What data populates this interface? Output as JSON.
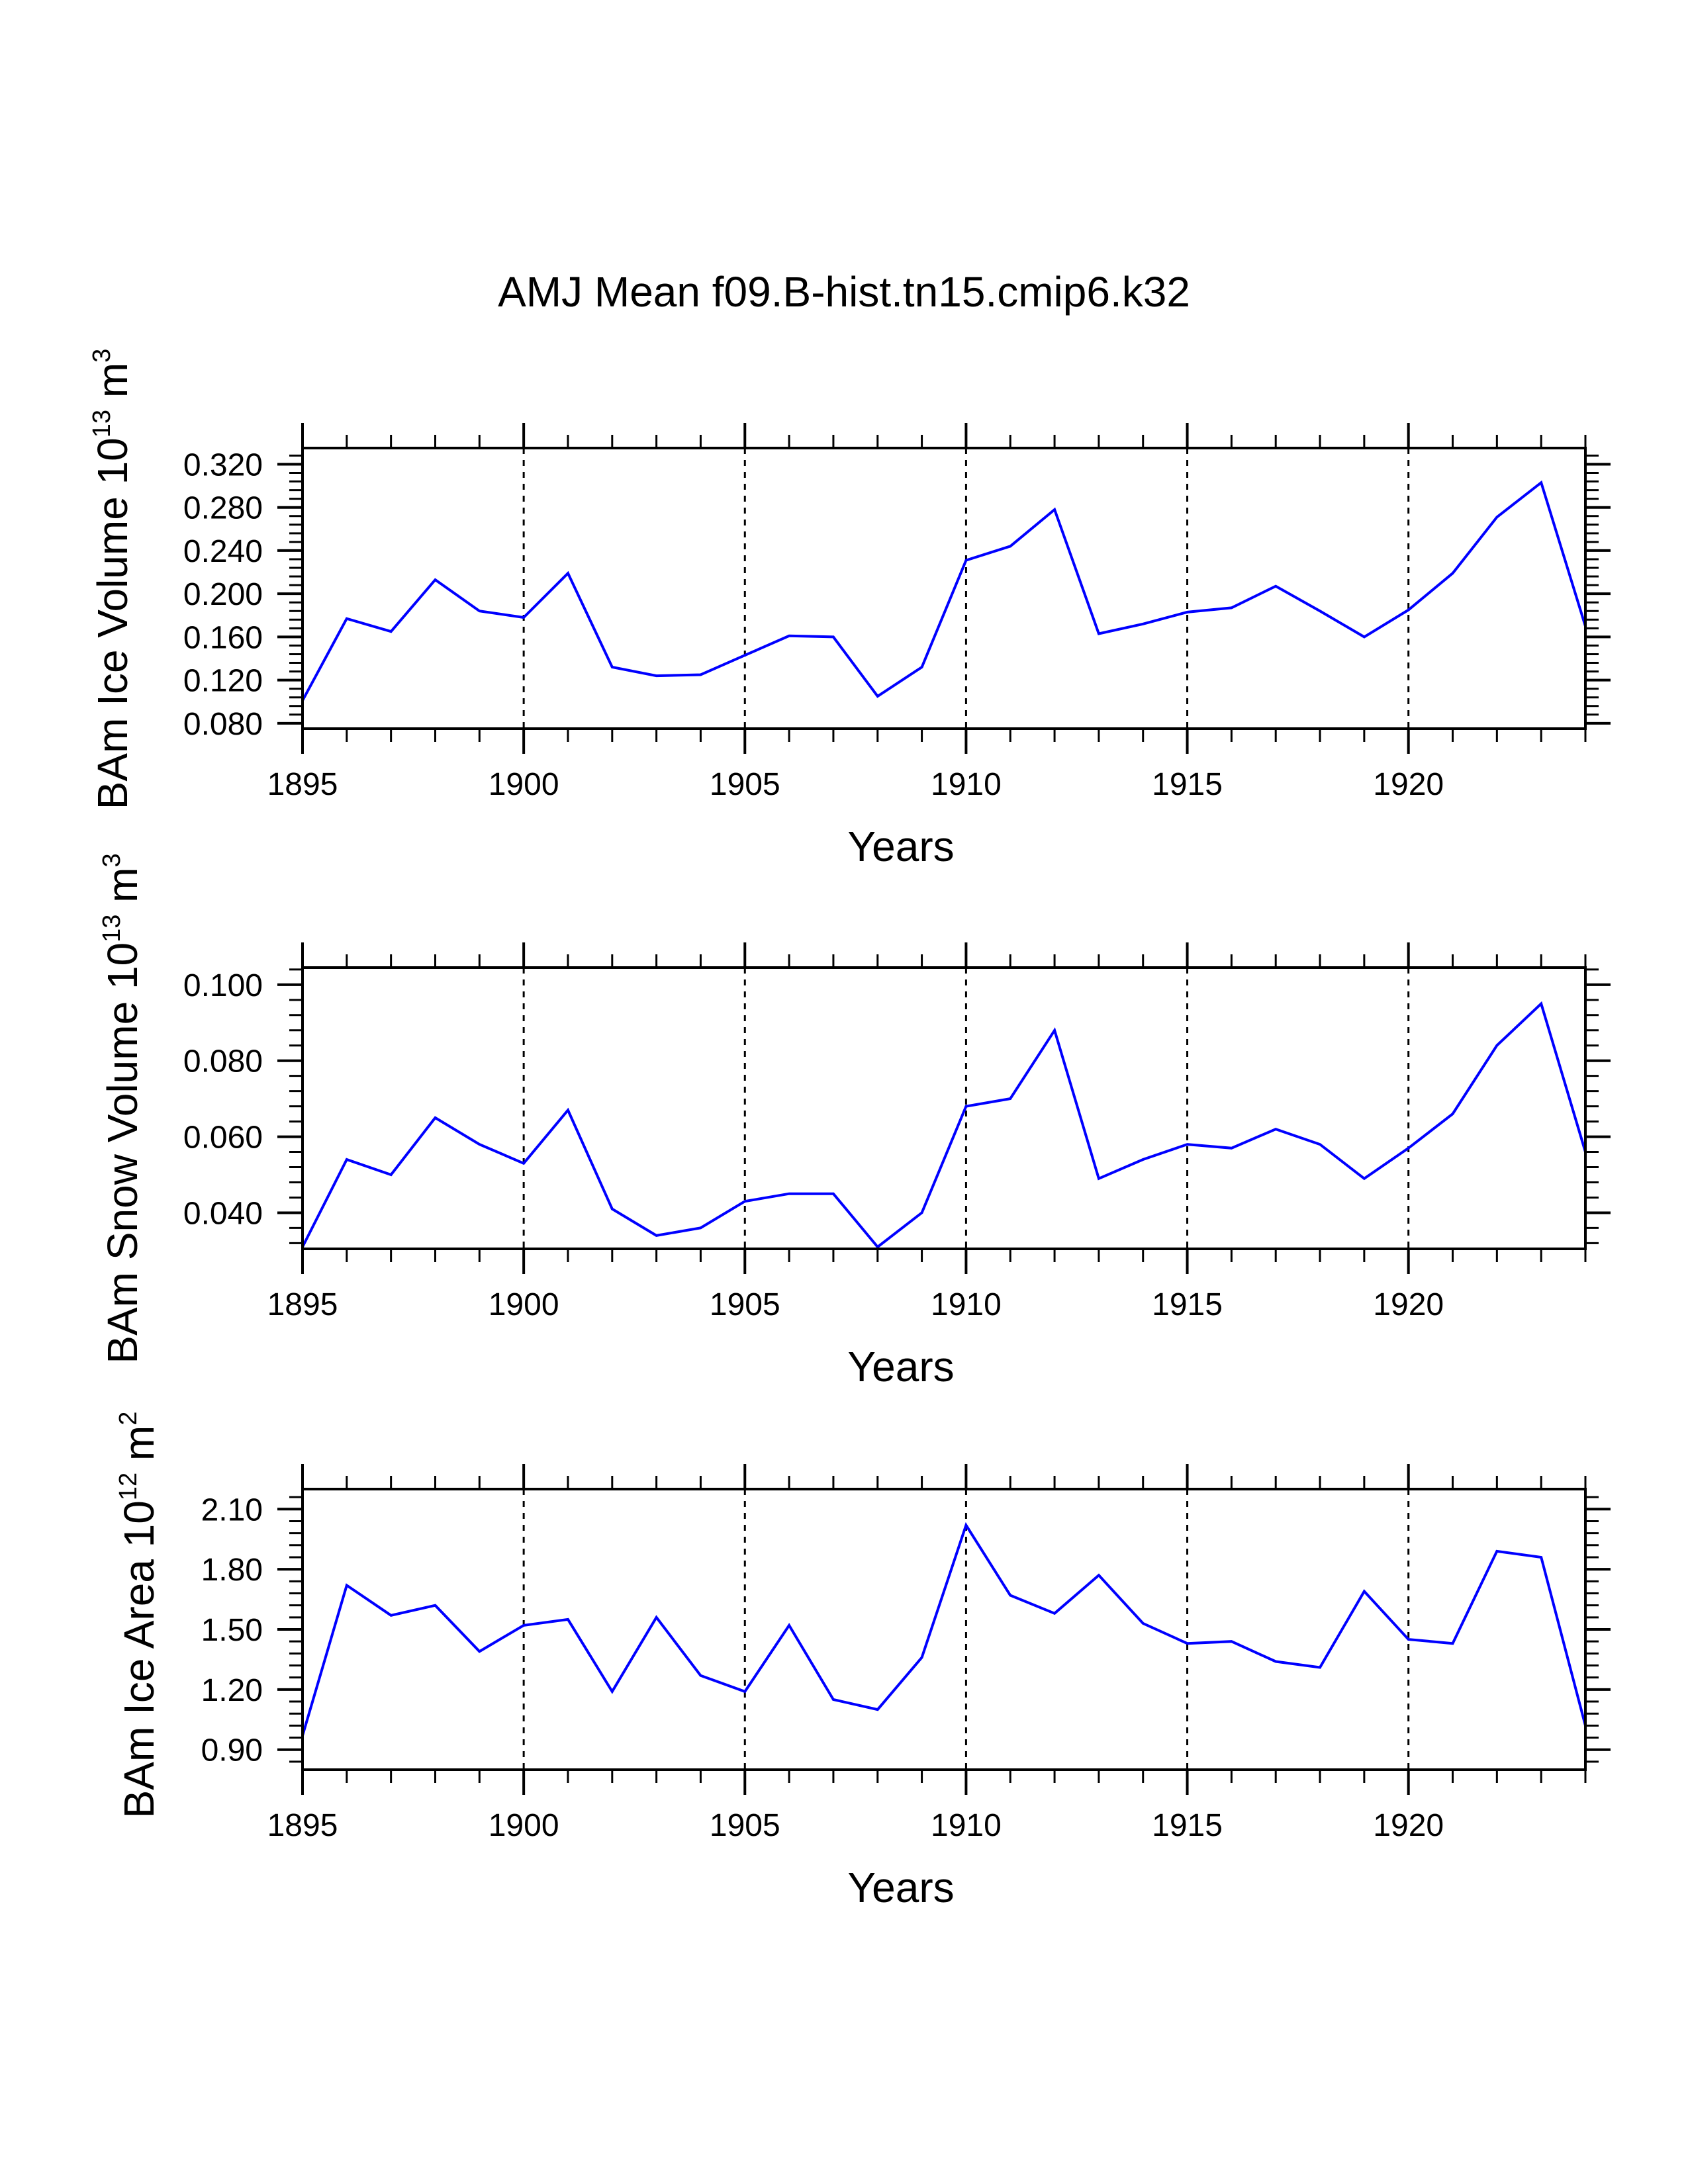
{
  "figure_title": "AMJ Mean f09.B-hist.tn15.cmip6.k32",
  "colors": {
    "series": "#0000ff",
    "axes": "#000000",
    "background": "#ffffff"
  },
  "chart_data": [
    {
      "type": "line",
      "name": "ice-volume",
      "ylabel": {
        "text": "BAm Ice Volume 10",
        "exp": "13",
        "unit": " m",
        "unit_exp": "3"
      },
      "xlabel": "Years",
      "xlim": [
        1895,
        1924
      ],
      "ylim": [
        0.075,
        0.335
      ],
      "x_ticks": [
        1895,
        1900,
        1905,
        1910,
        1915,
        1920
      ],
      "x_tick_labels": [
        "1895",
        "1900",
        "1905",
        "1910",
        "1915",
        "1920"
      ],
      "y_ticks": [
        0.08,
        0.12,
        0.16,
        0.2,
        0.24,
        0.28,
        0.32
      ],
      "y_tick_labels": [
        "0.080",
        "0.120",
        "0.160",
        "0.200",
        "0.240",
        "0.280",
        "0.320"
      ],
      "grid_x": [
        1900,
        1905,
        1910,
        1915,
        1920
      ],
      "x": [
        1895,
        1896,
        1897,
        1898,
        1899,
        1900,
        1901,
        1902,
        1903,
        1904,
        1905,
        1906,
        1907,
        1908,
        1909,
        1910,
        1911,
        1912,
        1913,
        1914,
        1915,
        1916,
        1917,
        1918,
        1919,
        1920,
        1921,
        1922,
        1923,
        1924
      ],
      "values": [
        0.101,
        0.177,
        0.165,
        0.213,
        0.184,
        0.178,
        0.219,
        0.132,
        0.124,
        0.125,
        0.143,
        0.161,
        0.16,
        0.105,
        0.132,
        0.231,
        0.244,
        0.278,
        0.163,
        0.172,
        0.183,
        0.187,
        0.207,
        0.184,
        0.16,
        0.185,
        0.219,
        0.271,
        0.303,
        0.17
      ]
    },
    {
      "type": "line",
      "name": "snow-volume",
      "ylabel": {
        "text": "BAm Snow Volume 10",
        "exp": "13",
        "unit": " m",
        "unit_exp": "3"
      },
      "xlabel": "Years",
      "xlim": [
        1895,
        1924
      ],
      "ylim": [
        0.0305,
        0.1045
      ],
      "x_ticks": [
        1895,
        1900,
        1905,
        1910,
        1915,
        1920
      ],
      "x_tick_labels": [
        "1895",
        "1900",
        "1905",
        "1910",
        "1915",
        "1920"
      ],
      "y_ticks": [
        0.04,
        0.06,
        0.08,
        0.1
      ],
      "y_tick_labels": [
        "0.040",
        "0.060",
        "0.080",
        "0.100"
      ],
      "grid_x": [
        1900,
        1905,
        1910,
        1915,
        1920
      ],
      "x": [
        1895,
        1896,
        1897,
        1898,
        1899,
        1900,
        1901,
        1902,
        1903,
        1904,
        1905,
        1906,
        1907,
        1908,
        1909,
        1910,
        1911,
        1912,
        1913,
        1914,
        1915,
        1916,
        1917,
        1918,
        1919,
        1920,
        1921,
        1922,
        1923,
        1924
      ],
      "values": [
        0.031,
        0.054,
        0.05,
        0.065,
        0.058,
        0.053,
        0.067,
        0.041,
        0.034,
        0.036,
        0.043,
        0.045,
        0.045,
        0.031,
        0.04,
        0.068,
        0.07,
        0.088,
        0.049,
        0.054,
        0.058,
        0.057,
        0.062,
        0.058,
        0.049,
        0.057,
        0.066,
        0.084,
        0.095,
        0.056
      ]
    },
    {
      "type": "line",
      "name": "ice-area",
      "ylabel": {
        "text": "BAm Ice Area 10",
        "exp": "12",
        "unit": " m",
        "unit_exp": "2"
      },
      "xlabel": "Years",
      "xlim": [
        1895,
        1924
      ],
      "ylim": [
        0.8,
        2.2
      ],
      "x_ticks": [
        1895,
        1900,
        1905,
        1910,
        1915,
        1920
      ],
      "x_tick_labels": [
        "1895",
        "1900",
        "1905",
        "1910",
        "1915",
        "1920"
      ],
      "y_ticks": [
        0.9,
        1.2,
        1.5,
        1.8,
        2.1
      ],
      "y_tick_labels": [
        "0.90",
        "1.20",
        "1.50",
        "1.80",
        "2.10"
      ],
      "grid_x": [
        1900,
        1905,
        1910,
        1915,
        1920
      ],
      "x": [
        1895,
        1896,
        1897,
        1898,
        1899,
        1900,
        1901,
        1902,
        1903,
        1904,
        1905,
        1906,
        1907,
        1908,
        1909,
        1910,
        1911,
        1912,
        1913,
        1914,
        1915,
        1916,
        1917,
        1918,
        1919,
        1920,
        1921,
        1922,
        1923,
        1924
      ],
      "values": [
        0.97,
        1.72,
        1.57,
        1.62,
        1.39,
        1.52,
        1.55,
        1.19,
        1.56,
        1.27,
        1.19,
        1.52,
        1.15,
        1.1,
        1.36,
        2.02,
        1.67,
        1.58,
        1.77,
        1.53,
        1.43,
        1.44,
        1.34,
        1.31,
        1.69,
        1.45,
        1.43,
        1.89,
        1.86,
        1.02
      ]
    }
  ]
}
